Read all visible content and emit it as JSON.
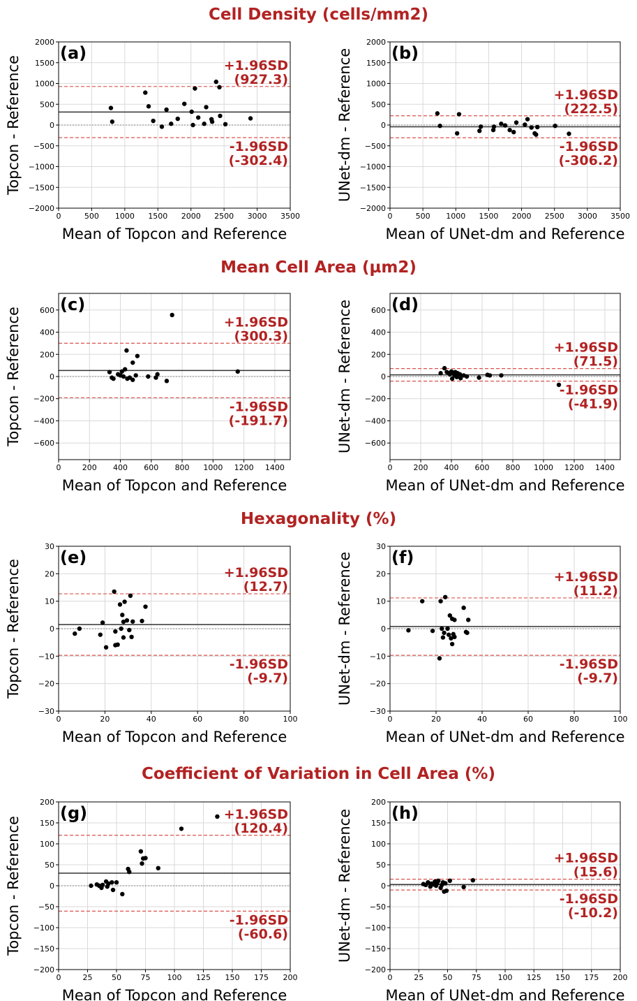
{
  "sections": [
    {
      "title": "Cell Density (cells/mm2)"
    },
    {
      "title": "Mean Cell Area (µm2)"
    },
    {
      "title": "Hexagonality (%)"
    },
    {
      "title": "Coefficient of Variation in Cell Area (%)"
    }
  ],
  "colors": {
    "limit_line": "#d9534f",
    "limit_text": "#b22222",
    "mean_line": "#333333",
    "zero_line": "#999999",
    "points": "#000000",
    "grid": "#d9d9d9"
  },
  "chart_data": [
    {
      "type": "scatter",
      "panel": "(a)",
      "xlabel": "Mean of Topcon and Reference",
      "ylabel": "Topcon - Reference",
      "xlim": [
        0,
        3500
      ],
      "ylim": [
        -2000,
        2000
      ],
      "xticks": [
        0,
        500,
        1000,
        1500,
        2000,
        2500,
        3000,
        3500
      ],
      "yticks": [
        -2000,
        -1500,
        -1000,
        -500,
        0,
        500,
        1000,
        1500,
        2000
      ],
      "mean_diff": 312,
      "upper_loa": 927.3,
      "lower_loa": -302.4,
      "upper_label": "+1.96SD",
      "upper_value": "(927.3)",
      "lower_label": "-1.96SD",
      "lower_value": "(-302.4)",
      "points": [
        [
          790,
          410
        ],
        [
          810,
          80
        ],
        [
          1310,
          780
        ],
        [
          1360,
          450
        ],
        [
          1430,
          100
        ],
        [
          1560,
          -40
        ],
        [
          1630,
          370
        ],
        [
          1700,
          30
        ],
        [
          1800,
          150
        ],
        [
          1900,
          510
        ],
        [
          2010,
          320
        ],
        [
          2030,
          0
        ],
        [
          2060,
          880
        ],
        [
          2110,
          180
        ],
        [
          2200,
          30
        ],
        [
          2230,
          430
        ],
        [
          2310,
          140
        ],
        [
          2320,
          80
        ],
        [
          2380,
          1040
        ],
        [
          2430,
          910
        ],
        [
          2440,
          220
        ],
        [
          2520,
          20
        ],
        [
          2900,
          160
        ]
      ]
    },
    {
      "type": "scatter",
      "panel": "(b)",
      "xlabel": "Mean of UNet-dm and Reference",
      "ylabel": "UNet-dm - Reference",
      "xlim": [
        0,
        3500
      ],
      "ylim": [
        -2000,
        2000
      ],
      "xticks": [
        0,
        500,
        1000,
        1500,
        2000,
        2500,
        3000,
        3500
      ],
      "yticks": [
        -2000,
        -1500,
        -1000,
        -500,
        0,
        500,
        1000,
        1500,
        2000
      ],
      "mean_diff": -42,
      "upper_loa": 222.5,
      "lower_loa": -306.2,
      "upper_label": "+1.96SD",
      "upper_value": "(222.5)",
      "lower_label": "-1.96SD",
      "lower_value": "(-306.2)",
      "points": [
        [
          720,
          280
        ],
        [
          760,
          -20
        ],
        [
          1020,
          -200
        ],
        [
          1050,
          260
        ],
        [
          1360,
          -140
        ],
        [
          1380,
          -40
        ],
        [
          1570,
          -120
        ],
        [
          1580,
          -40
        ],
        [
          1690,
          30
        ],
        [
          1750,
          -10
        ],
        [
          1820,
          -120
        ],
        [
          1880,
          -170
        ],
        [
          1920,
          60
        ],
        [
          2050,
          10
        ],
        [
          2090,
          140
        ],
        [
          2150,
          -60
        ],
        [
          2200,
          -200
        ],
        [
          2220,
          -230
        ],
        [
          2240,
          -50
        ],
        [
          2510,
          -20
        ],
        [
          2720,
          -210
        ]
      ]
    },
    {
      "type": "scatter",
      "panel": "(c)",
      "xlabel": "Mean of Topcon and Reference",
      "ylabel": "Topcon - Reference",
      "xlim": [
        0,
        1500
      ],
      "ylim": [
        -750,
        750
      ],
      "xticks": [
        0,
        200,
        400,
        600,
        800,
        1000,
        1200,
        1400
      ],
      "yticks": [
        -600,
        -400,
        -200,
        0,
        200,
        400,
        600
      ],
      "mean_diff": 54,
      "upper_loa": 300.3,
      "lower_loa": -191.7,
      "upper_label": "+1.96SD",
      "upper_value": "(300.3)",
      "lower_label": "-1.96SD",
      "lower_value": "(-191.7)",
      "points": [
        [
          330,
          40
        ],
        [
          345,
          -10
        ],
        [
          355,
          -20
        ],
        [
          385,
          20
        ],
        [
          400,
          10
        ],
        [
          410,
          45
        ],
        [
          420,
          0
        ],
        [
          430,
          65
        ],
        [
          440,
          235
        ],
        [
          445,
          -20
        ],
        [
          460,
          -10
        ],
        [
          480,
          -30
        ],
        [
          480,
          125
        ],
        [
          500,
          10
        ],
        [
          510,
          185
        ],
        [
          580,
          0
        ],
        [
          630,
          -10
        ],
        [
          640,
          20
        ],
        [
          700,
          -40
        ],
        [
          735,
          555
        ],
        [
          1160,
          45
        ]
      ]
    },
    {
      "type": "scatter",
      "panel": "(d)",
      "xlabel": "Mean of UNet-dm and Reference",
      "ylabel": "UNet-dm - Reference",
      "xlim": [
        0,
        1500
      ],
      "ylim": [
        -750,
        750
      ],
      "xticks": [
        0,
        200,
        400,
        600,
        800,
        1000,
        1200,
        1400
      ],
      "yticks": [
        -600,
        -400,
        -200,
        0,
        200,
        400,
        600
      ],
      "mean_diff": 15,
      "upper_loa": 71.5,
      "lower_loa": -41.9,
      "upper_label": "+1.96SD",
      "upper_value": "(71.5)",
      "lower_label": "-1.96SD",
      "lower_value": "(-41.9)",
      "points": [
        [
          330,
          30
        ],
        [
          355,
          75
        ],
        [
          370,
          40
        ],
        [
          385,
          30
        ],
        [
          390,
          20
        ],
        [
          400,
          45
        ],
        [
          405,
          -20
        ],
        [
          410,
          35
        ],
        [
          420,
          10
        ],
        [
          425,
          40
        ],
        [
          435,
          -5
        ],
        [
          440,
          30
        ],
        [
          455,
          20
        ],
        [
          460,
          -15
        ],
        [
          480,
          10
        ],
        [
          500,
          0
        ],
        [
          580,
          -10
        ],
        [
          635,
          15
        ],
        [
          650,
          10
        ],
        [
          725,
          10
        ],
        [
          1100,
          -75
        ]
      ]
    },
    {
      "type": "scatter",
      "panel": "(e)",
      "xlabel": "Mean of Topcon and Reference",
      "ylabel": "Topcon - Reference",
      "xlim": [
        0,
        100
      ],
      "ylim": [
        -30,
        30
      ],
      "xticks": [
        0,
        20,
        40,
        60,
        80,
        100
      ],
      "yticks": [
        -30,
        -20,
        -10,
        0,
        10,
        20,
        30
      ],
      "mean_diff": 1.5,
      "upper_loa": 12.7,
      "lower_loa": -9.7,
      "upper_label": "+1.96SD",
      "upper_value": "(12.7)",
      "lower_label": "-1.96SD",
      "lower_value": "(-9.7)",
      "points": [
        [
          7,
          -1.8
        ],
        [
          9,
          0
        ],
        [
          18,
          -2.2
        ],
        [
          19,
          2.2
        ],
        [
          20.5,
          -6.8
        ],
        [
          24,
          13.5
        ],
        [
          24.5,
          -6
        ],
        [
          24.5,
          -1
        ],
        [
          25.5,
          -5.8
        ],
        [
          26.5,
          8.8
        ],
        [
          27,
          0
        ],
        [
          27.5,
          5
        ],
        [
          28,
          2.5
        ],
        [
          28,
          -3.2
        ],
        [
          28.5,
          9.8
        ],
        [
          29.5,
          3
        ],
        [
          30.5,
          -0.5
        ],
        [
          31,
          12
        ],
        [
          31.5,
          -3
        ],
        [
          32,
          2.6
        ],
        [
          36,
          2.8
        ],
        [
          37.5,
          8
        ]
      ]
    },
    {
      "type": "scatter",
      "panel": "(f)",
      "xlabel": "Mean of UNet-dm and Reference",
      "ylabel": "UNet-dm - Reference",
      "xlim": [
        0,
        100
      ],
      "ylim": [
        -30,
        30
      ],
      "xticks": [
        0,
        20,
        40,
        60,
        80,
        100
      ],
      "yticks": [
        -30,
        -20,
        -10,
        0,
        10,
        20,
        30
      ],
      "mean_diff": 0.8,
      "upper_loa": 11.2,
      "lower_loa": -9.7,
      "upper_label": "+1.96SD",
      "upper_value": "(11.2)",
      "lower_label": "-1.96SD",
      "lower_value": "(-9.7)",
      "points": [
        [
          8,
          -0.6
        ],
        [
          14,
          10
        ],
        [
          18.5,
          -0.8
        ],
        [
          21.5,
          -10.8
        ],
        [
          22,
          10
        ],
        [
          22.5,
          0
        ],
        [
          23,
          -3.2
        ],
        [
          23.5,
          -1.5
        ],
        [
          24,
          11.5
        ],
        [
          25,
          0
        ],
        [
          25.5,
          -2.2
        ],
        [
          26,
          4.8
        ],
        [
          26.5,
          -3.5
        ],
        [
          27,
          3.6
        ],
        [
          27,
          -5.6
        ],
        [
          27.5,
          -2
        ],
        [
          28,
          3.2
        ],
        [
          28,
          -3
        ],
        [
          32,
          7.6
        ],
        [
          33,
          -1.2
        ],
        [
          33.5,
          -1.5
        ],
        [
          34,
          3.2
        ]
      ]
    },
    {
      "type": "scatter",
      "panel": "(g)",
      "xlabel": "Mean of Topcon and Reference",
      "ylabel": "Topcon - Reference",
      "xlim": [
        0,
        200
      ],
      "ylim": [
        -200,
        200
      ],
      "xticks": [
        0,
        25,
        50,
        75,
        100,
        125,
        150,
        175,
        200
      ],
      "yticks": [
        -200,
        -150,
        -100,
        -50,
        0,
        50,
        100,
        150,
        200
      ],
      "mean_diff": 30,
      "upper_loa": 120.4,
      "lower_loa": -60.6,
      "upper_label": "+1.96SD",
      "upper_value": "(120.4)",
      "lower_label": "-1.96SD",
      "lower_value": "(-60.6)",
      "points": [
        [
          28,
          0
        ],
        [
          33,
          3
        ],
        [
          35,
          0
        ],
        [
          37,
          -5
        ],
        [
          38,
          2
        ],
        [
          41,
          10
        ],
        [
          42,
          -2
        ],
        [
          43,
          5
        ],
        [
          46,
          8
        ],
        [
          47,
          -10
        ],
        [
          50,
          8
        ],
        [
          55,
          -20
        ],
        [
          60,
          40
        ],
        [
          61,
          33
        ],
        [
          71,
          82
        ],
        [
          72,
          53
        ],
        [
          73,
          65
        ],
        [
          75,
          66
        ],
        [
          86,
          42
        ],
        [
          106,
          136
        ],
        [
          137,
          165
        ]
      ]
    },
    {
      "type": "scatter",
      "panel": "(h)",
      "xlabel": "Mean of UNet-dm and Reference",
      "ylabel": "UNet-dm - Reference",
      "xlim": [
        0,
        200
      ],
      "ylim": [
        -200,
        200
      ],
      "xticks": [
        0,
        25,
        50,
        75,
        100,
        125,
        150,
        175,
        200
      ],
      "yticks": [
        -200,
        -150,
        -100,
        -50,
        0,
        50,
        100,
        150,
        200
      ],
      "mean_diff": 3,
      "upper_loa": 15.6,
      "lower_loa": -10.2,
      "upper_label": "+1.96SD",
      "upper_value": "(15.6)",
      "lower_label": "-1.96SD",
      "lower_value": "(-10.2)",
      "points": [
        [
          29,
          4
        ],
        [
          31,
          2
        ],
        [
          33,
          8
        ],
        [
          35,
          -2
        ],
        [
          36,
          5
        ],
        [
          38,
          3
        ],
        [
          39,
          10
        ],
        [
          40,
          0
        ],
        [
          41,
          6
        ],
        [
          42,
          12
        ],
        [
          44,
          -5
        ],
        [
          45,
          2
        ],
        [
          46,
          8
        ],
        [
          47,
          -14
        ],
        [
          48,
          6
        ],
        [
          49,
          -12
        ],
        [
          52,
          12
        ],
        [
          64,
          -3
        ],
        [
          72,
          13
        ]
      ]
    }
  ]
}
